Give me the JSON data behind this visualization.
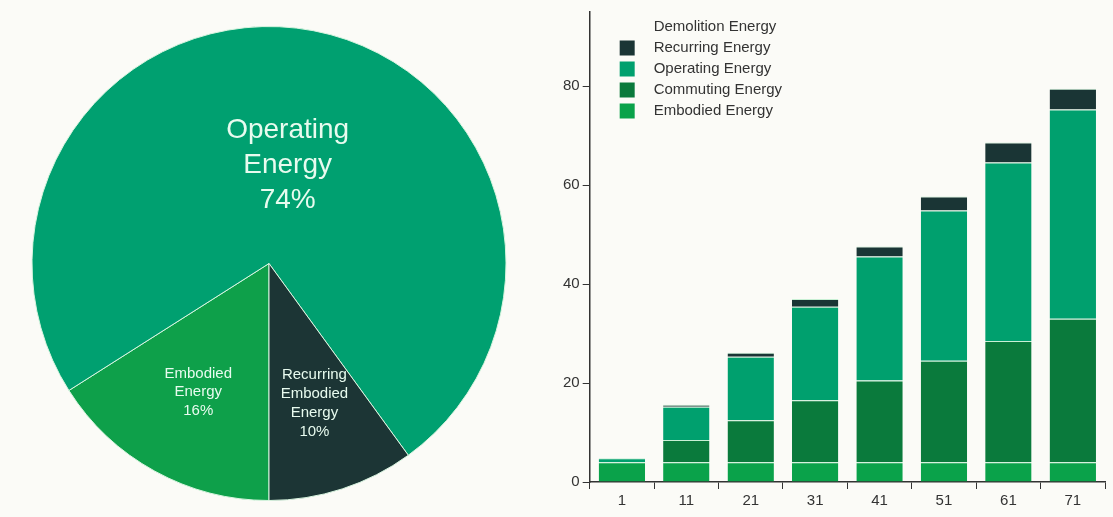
{
  "chart_data": [
    {
      "type": "pie",
      "categories": [
        "Embodied Energy",
        "Operating Energy",
        "Recurring Embodied Energy"
      ],
      "values": [
        16,
        74,
        10
      ],
      "colors": [
        "#0ea04a",
        "#00a070",
        "#1c3535"
      ],
      "value_labels": [
        "16%",
        "74%",
        "10%"
      ],
      "legend": false
    },
    {
      "type": "bar",
      "stacked": true,
      "categories": [
        "1",
        "11",
        "21",
        "31",
        "41",
        "51",
        "61",
        "71"
      ],
      "series": [
        {
          "name": "Embodied Energy",
          "color": "#0aa24a",
          "values": [
            4,
            4,
            4,
            4,
            4,
            4,
            4,
            4
          ]
        },
        {
          "name": "Commuting Energy",
          "color": "#0a7a3c",
          "values": [
            0,
            4.5,
            8.5,
            12.5,
            16.5,
            20.5,
            24.5,
            29
          ]
        },
        {
          "name": "Operating Energy",
          "color": "#00a06e",
          "values": [
            0.8,
            6.7,
            12.8,
            18.9,
            25.1,
            30.4,
            36.1,
            42.3
          ]
        },
        {
          "name": "Recurring Energy",
          "color": "#1a3535",
          "values": [
            0,
            0.4,
            0.8,
            1.6,
            2,
            2.8,
            4,
            4.2
          ]
        },
        {
          "name": "Demolition Energy",
          "values": [
            null,
            null,
            null,
            null,
            null,
            null,
            null,
            null
          ]
        }
      ],
      "ylim": [
        0,
        95
      ],
      "yticks": [
        0,
        20,
        40,
        60,
        80
      ],
      "grid": false,
      "legend": "top left"
    }
  ]
}
